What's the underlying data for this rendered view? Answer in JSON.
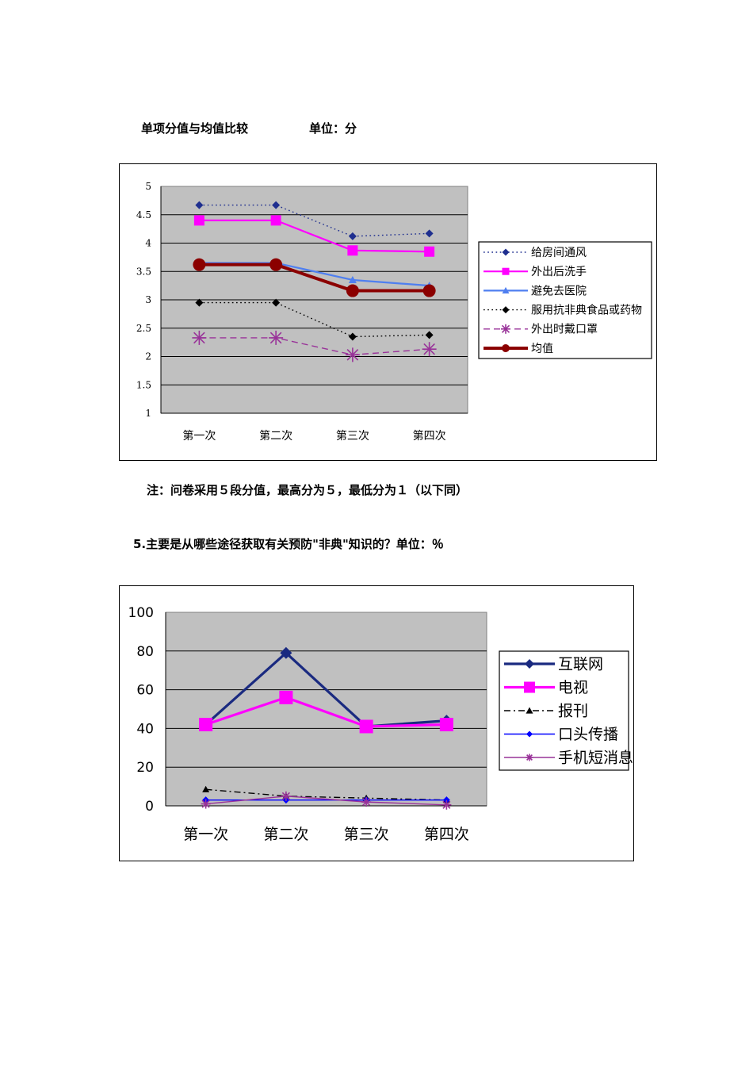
{
  "page": {
    "chart1_caption": "单项分值与均值比较",
    "chart1_unit": "单位：分",
    "note": "注：问卷采用５段分值，最高分为５，最低分为１（以下同）",
    "question5": "5.主要是从哪些途径获取有关预防\"非典\"知识的？单位：％"
  },
  "chart_data": [
    {
      "type": "line",
      "categories": [
        "第一次",
        "第二次",
        "第三次",
        "第四次"
      ],
      "ylim": [
        1,
        5
      ],
      "yticks": [
        "1",
        "1.5",
        "2",
        "2.5",
        "3",
        "3.5",
        "4",
        "4.5",
        "5"
      ],
      "grid": true,
      "legend_position": "right",
      "plot_background": "#c0c0c0",
      "series": [
        {
          "name": "给房间通风",
          "values": [
            4.67,
            4.67,
            4.12,
            4.17
          ],
          "color": "#1f2f8f",
          "dash": "dotted",
          "marker": "diamond"
        },
        {
          "name": "外出后洗手",
          "values": [
            4.4,
            4.4,
            3.87,
            3.85
          ],
          "color": "#ff00ff",
          "dash": "solid",
          "marker": "square"
        },
        {
          "name": "避免去医院",
          "values": [
            3.65,
            3.65,
            3.35,
            3.25
          ],
          "color": "#4f7ff0",
          "dash": "solid",
          "marker": "triangle"
        },
        {
          "name": "服用抗非典食品或药物",
          "values": [
            2.95,
            2.95,
            2.35,
            2.38
          ],
          "color": "#000000",
          "dash": "dotted",
          "marker": "diamond"
        },
        {
          "name": "外出时戴口罩",
          "values": [
            2.33,
            2.33,
            2.03,
            2.13
          ],
          "color": "#993399",
          "dash": "dashed",
          "marker": "asterisk"
        },
        {
          "name": "均值",
          "values": [
            3.62,
            3.62,
            3.16,
            3.16
          ],
          "color": "#8b0000",
          "dash": "solid",
          "marker": "circle"
        }
      ]
    },
    {
      "type": "line",
      "categories": [
        "第一次",
        "第二次",
        "第三次",
        "第四次"
      ],
      "ylim": [
        0,
        100
      ],
      "yticks": [
        "0",
        "20",
        "40",
        "60",
        "80",
        "100"
      ],
      "grid": true,
      "legend_position": "right",
      "plot_background": "#c0c0c0",
      "series": [
        {
          "name": "互联网",
          "values": [
            42,
            79,
            41,
            44
          ],
          "color": "#1a2a80",
          "dash": "solid",
          "marker": "diamond"
        },
        {
          "name": "电视",
          "values": [
            42,
            56,
            41,
            42
          ],
          "color": "#ff00ff",
          "dash": "solid",
          "marker": "square"
        },
        {
          "name": "报刊",
          "values": [
            8.5,
            5,
            4,
            3
          ],
          "color": "#000000",
          "dash": "dashdot",
          "marker": "triangle"
        },
        {
          "name": "口头传播",
          "values": [
            3,
            3,
            3,
            3
          ],
          "color": "#0000ff",
          "dash": "solid",
          "marker": "diamond"
        },
        {
          "name": "手机短消息",
          "values": [
            1,
            5,
            2,
            0.5
          ],
          "color": "#993399",
          "dash": "solid",
          "marker": "asterisk"
        }
      ]
    }
  ]
}
